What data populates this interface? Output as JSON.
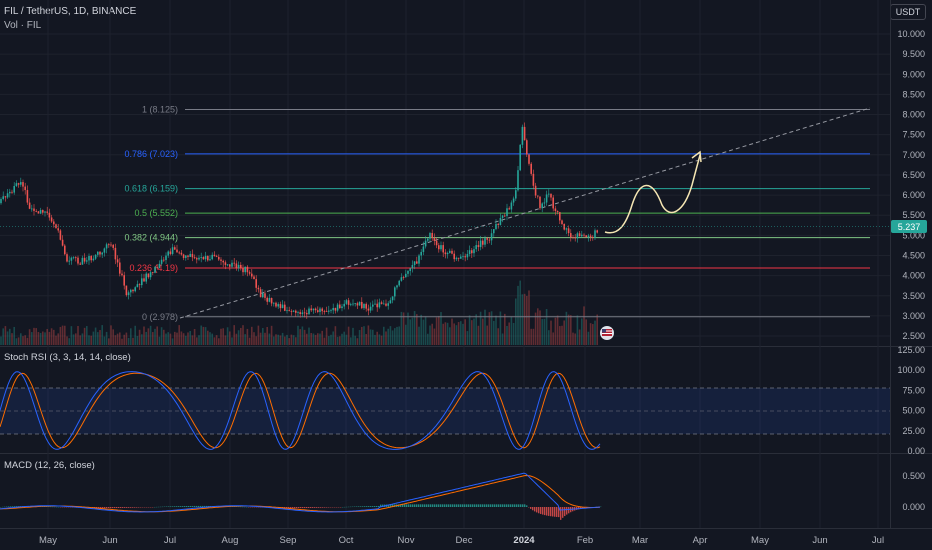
{
  "header": {
    "title": "FIL / TetherUS, 1D, BINANCE",
    "volume_label": "Vol · FIL",
    "currency_button": "USDT"
  },
  "price_axis": {
    "ticks": [
      "10.000",
      "9.500",
      "9.000",
      "8.500",
      "8.000",
      "7.500",
      "7.000",
      "6.500",
      "6.000",
      "5.500",
      "5.000",
      "4.500",
      "4.000",
      "3.500",
      "3.000",
      "2.500"
    ],
    "last_price": "5.237",
    "last_price_color": "#26a69a"
  },
  "fib_levels": [
    {
      "label": "1 (8.125)",
      "price": 8.125,
      "color": "#787b86"
    },
    {
      "label": "0.786 (7.023)",
      "price": 7.023,
      "color": "#2962ff"
    },
    {
      "label": "0.618 (6.159)",
      "price": 6.159,
      "color": "#26a69a"
    },
    {
      "label": "0.5 (5.552)",
      "price": 5.552,
      "color": "#4caf50"
    },
    {
      "label": "0.382 (4.944)",
      "price": 4.944,
      "color": "#81c784"
    },
    {
      "label": "0.236 (4.19)",
      "price": 4.19,
      "color": "#f23645"
    },
    {
      "label": "0 (2.978)",
      "price": 2.978,
      "color": "#787b86"
    }
  ],
  "stoch_rsi": {
    "label": "Stoch RSI (3, 3, 14, 14, close)",
    "ticks": [
      "125.00",
      "100.00",
      "75.00",
      "50.00",
      "25.00",
      "0.00"
    ]
  },
  "macd": {
    "label": "MACD (12, 26, close)",
    "ticks": [
      "0.500",
      "0.000"
    ]
  },
  "time_axis": {
    "labels": [
      "May",
      "Jun",
      "Jul",
      "Aug",
      "Sep",
      "Oct",
      "Nov",
      "Dec",
      "2024",
      "Feb",
      "Mar",
      "Apr",
      "May",
      "Jun",
      "Jul"
    ]
  },
  "colors": {
    "up": "#26a69a",
    "down": "#ef5350",
    "stoch_k": "#2962ff",
    "stoch_d": "#ff6d00",
    "projection": "#f5e6b3"
  },
  "icons": {
    "event_badge": "us-flag-icon"
  }
}
